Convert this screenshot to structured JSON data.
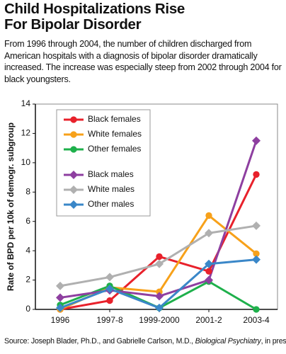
{
  "chart_data": {
    "type": "line",
    "title": [
      "Child Hospitalizations Rise",
      "For Bipolar Disorder"
    ],
    "subtitle": "From 1996 through 2004, the number of children discharged from American hospitals with a diagnosis of bipolar disorder dramatically increased. The increase was especially steep from 2002 through 2004 for black youngsters.",
    "y_label": "Rate of BPD per 10k of demogr. subgroup",
    "categories": [
      "1996",
      "1997-8",
      "1999-2000",
      "2001-2",
      "2003-4"
    ],
    "ylim": [
      0,
      14
    ],
    "yticks": [
      0,
      2,
      4,
      6,
      8,
      10,
      12,
      14
    ],
    "grid": false,
    "series": [
      {
        "name": "Black females",
        "color": "#e8212b",
        "marker": "circle",
        "values": [
          0,
          0.6,
          3.6,
          2.6,
          9.2
        ]
      },
      {
        "name": "White females",
        "color": "#f7a11a",
        "marker": "circle",
        "values": [
          0,
          1.5,
          1.2,
          6.4,
          3.8
        ]
      },
      {
        "name": "Other females",
        "color": "#1eb04b",
        "marker": "circle",
        "values": [
          0.3,
          1.6,
          0.1,
          1.9,
          0
        ]
      },
      {
        "name": "Black males",
        "color": "#8e3fa0",
        "marker": "diamond",
        "values": [
          0.8,
          1.3,
          0.9,
          2.0,
          11.5
        ]
      },
      {
        "name": "White males",
        "color": "#b0b0b0",
        "marker": "diamond",
        "values": [
          1.6,
          2.2,
          3.1,
          5.2,
          5.7
        ]
      },
      {
        "name": "Other males",
        "color": "#3a87c8",
        "marker": "diamond",
        "values": [
          0.1,
          1.4,
          0.1,
          3.1,
          3.4
        ]
      }
    ],
    "source": [
      "Source: Joseph Blader, Ph.D., and Gabrielle Carlson, M.D., ",
      "Biological Psychiatry",
      ", in press"
    ]
  }
}
